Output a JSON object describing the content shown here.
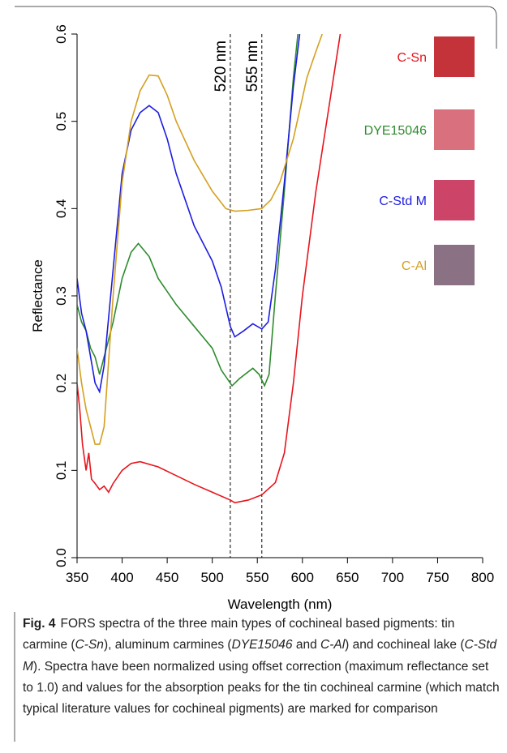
{
  "chart_data": {
    "type": "line",
    "xlabel": "Wavelength (nm)",
    "ylabel": "Reflectance",
    "xlim": [
      350,
      800
    ],
    "ylim": [
      0,
      0.6
    ],
    "xticks": [
      350,
      400,
      450,
      500,
      550,
      600,
      650,
      700,
      750,
      800
    ],
    "yticks": [
      {
        "value": 0,
        "label": "0.0"
      },
      {
        "value": 0.1,
        "label": "0.1"
      },
      {
        "value": 0.2,
        "label": "0.2"
      },
      {
        "value": 0.3,
        "label": "0.3"
      },
      {
        "value": 0.4,
        "label": "0.4"
      },
      {
        "value": 0.5,
        "label": "0.5"
      },
      {
        "value": 0.6,
        "label": "0.6"
      }
    ],
    "vlines": [
      {
        "x": 520,
        "label": "520 nm"
      },
      {
        "x": 555,
        "label": "555 nm"
      }
    ],
    "series": [
      {
        "name": "C-Sn",
        "color": "#e8141c",
        "swatch": "#c4323a",
        "x": [
          350,
          353,
          356,
          360,
          363,
          366,
          370,
          375,
          380,
          385,
          390,
          400,
          410,
          420,
          440,
          460,
          480,
          500,
          520,
          525,
          540,
          555,
          570,
          580,
          590,
          600,
          615,
          630,
          642
        ],
        "values": [
          0.2,
          0.17,
          0.13,
          0.1,
          0.12,
          0.09,
          0.085,
          0.078,
          0.082,
          0.075,
          0.085,
          0.1,
          0.108,
          0.11,
          0.104,
          0.094,
          0.084,
          0.075,
          0.066,
          0.063,
          0.066,
          0.072,
          0.086,
          0.12,
          0.2,
          0.3,
          0.42,
          0.52,
          0.6
        ]
      },
      {
        "name": "DYE15046",
        "color": "#2e8b2e",
        "swatch": "#d8707e",
        "x": [
          350,
          355,
          360,
          365,
          370,
          375,
          380,
          390,
          400,
          410,
          418,
          430,
          440,
          460,
          480,
          500,
          510,
          522,
          530,
          545,
          552,
          558,
          563,
          570,
          580,
          590,
          595
        ],
        "values": [
          0.29,
          0.27,
          0.26,
          0.24,
          0.23,
          0.21,
          0.23,
          0.27,
          0.32,
          0.35,
          0.36,
          0.345,
          0.32,
          0.29,
          0.265,
          0.24,
          0.215,
          0.197,
          0.205,
          0.217,
          0.21,
          0.197,
          0.21,
          0.3,
          0.42,
          0.55,
          0.6
        ]
      },
      {
        "name": "C-Std M",
        "color": "#1c1ce0",
        "swatch": "#cc4468",
        "x": [
          350,
          355,
          360,
          365,
          370,
          375,
          380,
          390,
          400,
          410,
          420,
          430,
          440,
          450,
          460,
          480,
          500,
          510,
          520,
          525,
          535,
          545,
          555,
          562,
          570,
          580,
          590,
          597
        ],
        "values": [
          0.32,
          0.28,
          0.26,
          0.23,
          0.2,
          0.19,
          0.22,
          0.33,
          0.44,
          0.49,
          0.51,
          0.518,
          0.51,
          0.48,
          0.44,
          0.38,
          0.34,
          0.31,
          0.265,
          0.253,
          0.26,
          0.268,
          0.262,
          0.27,
          0.33,
          0.43,
          0.54,
          0.6
        ]
      },
      {
        "name": "C-Al",
        "color": "#d4a020",
        "swatch": "#8a7284",
        "x": [
          350,
          355,
          360,
          365,
          370,
          375,
          380,
          390,
          400,
          410,
          420,
          430,
          440,
          450,
          460,
          480,
          500,
          515,
          525,
          540,
          555,
          565,
          575,
          590,
          605,
          615,
          622
        ],
        "values": [
          0.24,
          0.2,
          0.17,
          0.15,
          0.13,
          0.13,
          0.15,
          0.3,
          0.43,
          0.5,
          0.535,
          0.553,
          0.552,
          0.53,
          0.5,
          0.455,
          0.42,
          0.4,
          0.397,
          0.398,
          0.4,
          0.41,
          0.43,
          0.48,
          0.55,
          0.58,
          0.6
        ]
      }
    ]
  },
  "caption": {
    "label": "Fig. 4",
    "parts": [
      "FORS spectra of the three main types of cochineal based pigments: tin carmine (",
      "C-Sn",
      "), aluminum carmines (",
      "DYE15046",
      " and ",
      "C-Al",
      ") and cochineal lake (",
      "C-Std M",
      "). Spectra have been normalized using offset correction (maximum reflectance set to 1.0) and values for the absorption peaks for the tin cochineal carmine (which match typical literature values for cochineal pigments) are marked for comparison"
    ]
  }
}
